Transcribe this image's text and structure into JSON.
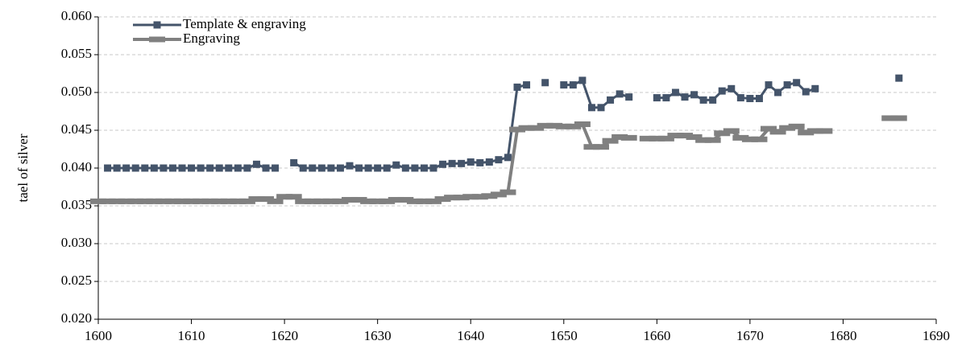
{
  "chart_data": {
    "type": "line",
    "ylabel": "tael of silver",
    "xlim": [
      1600,
      1690
    ],
    "xticks": [
      1600,
      1610,
      1620,
      1630,
      1640,
      1650,
      1660,
      1670,
      1680,
      1690
    ],
    "ylim": [
      0.02,
      0.06
    ],
    "yticks": [
      {
        "value": 0.02,
        "label": "0.020"
      },
      0.025,
      {
        "value": 0.03,
        "label": "0.030"
      },
      0.035,
      {
        "value": 0.04,
        "label": "0.040"
      },
      0.045,
      {
        "value": 0.05,
        "label": "0.050"
      },
      0.055,
      {
        "value": 0.06,
        "label": "0.060"
      }
    ],
    "grid": true,
    "legend": "upper left",
    "x": [
      1600,
      1601,
      1602,
      1603,
      1604,
      1605,
      1606,
      1607,
      1608,
      1609,
      1610,
      1611,
      1612,
      1613,
      1614,
      1615,
      1616,
      1617,
      1618,
      1619,
      1620,
      1621,
      1622,
      1623,
      1624,
      1625,
      1626,
      1627,
      1628,
      1629,
      1630,
      1631,
      1632,
      1633,
      1634,
      1635,
      1636,
      1637,
      1638,
      1639,
      1640,
      1641,
      1642,
      1643,
      1644,
      1645,
      1646,
      1647,
      1648,
      1649,
      1650,
      1651,
      1652,
      1653,
      1654,
      1655,
      1656,
      1657,
      1658,
      1659,
      1660,
      1661,
      1662,
      1663,
      1664,
      1665,
      1666,
      1667,
      1668,
      1669,
      1670,
      1671,
      1672,
      1673,
      1674,
      1675,
      1676,
      1677,
      1678,
      1679,
      1680,
      1681,
      1682,
      1683,
      1684,
      1685,
      1686
    ],
    "series": [
      {
        "name": "Template & engraving",
        "color": "#44546a",
        "marker": "square",
        "values": [
          null,
          0.04,
          0.04,
          0.04,
          0.04,
          0.04,
          0.04,
          0.04,
          0.04,
          0.04,
          0.04,
          0.04,
          0.04,
          0.04,
          0.04,
          0.04,
          0.04,
          0.0405,
          0.04,
          0.04,
          null,
          0.0407,
          0.04,
          0.04,
          0.04,
          0.04,
          0.04,
          0.0403,
          0.04,
          0.04,
          0.04,
          0.04,
          0.0404,
          0.04,
          0.04,
          0.04,
          0.04,
          0.0405,
          0.0406,
          0.0406,
          0.0408,
          0.0407,
          0.0408,
          0.0411,
          0.0414,
          0.0507,
          0.051,
          null,
          0.0513,
          null,
          0.051,
          0.051,
          0.0516,
          0.048,
          0.048,
          0.049,
          0.0498,
          0.0494,
          null,
          null,
          0.0493,
          0.0493,
          0.05,
          0.0494,
          0.0497,
          0.049,
          0.049,
          0.0502,
          0.0505,
          0.0493,
          0.0492,
          0.0492,
          0.051,
          0.05,
          0.051,
          0.0513,
          0.0501,
          0.0505,
          null,
          null,
          null,
          null,
          null,
          null,
          null,
          null,
          0.0519
        ]
      },
      {
        "name": "Engraving",
        "color": "#808080",
        "marker": "dash",
        "values": [
          0.0356,
          0.0356,
          0.0356,
          0.0356,
          0.0356,
          0.0356,
          0.0356,
          0.0356,
          0.0356,
          0.0356,
          0.0356,
          0.0356,
          0.0356,
          0.0356,
          0.0356,
          0.0356,
          0.0356,
          0.0359,
          0.0359,
          0.0356,
          0.0362,
          0.0362,
          0.0356,
          0.0356,
          0.0356,
          0.0356,
          0.0356,
          0.0358,
          0.0358,
          0.0356,
          0.0356,
          0.0356,
          0.0358,
          0.0358,
          0.0356,
          0.0356,
          0.0356,
          0.0359,
          0.0361,
          0.0361,
          0.0362,
          0.0362,
          0.0363,
          0.0365,
          0.0368,
          0.0451,
          0.0453,
          0.0453,
          0.0456,
          0.0456,
          0.0455,
          0.0455,
          0.0458,
          0.0428,
          0.0428,
          0.0436,
          0.0441,
          0.044,
          null,
          0.0439,
          0.0439,
          0.0439,
          0.0443,
          0.0443,
          0.0441,
          0.0437,
          0.0437,
          0.0446,
          0.0449,
          0.044,
          0.0438,
          0.0438,
          0.0452,
          0.0448,
          0.0453,
          0.0455,
          0.0447,
          0.0449,
          0.0449,
          null,
          null,
          null,
          null,
          null,
          null,
          0.0466,
          0.0466
        ]
      }
    ]
  }
}
